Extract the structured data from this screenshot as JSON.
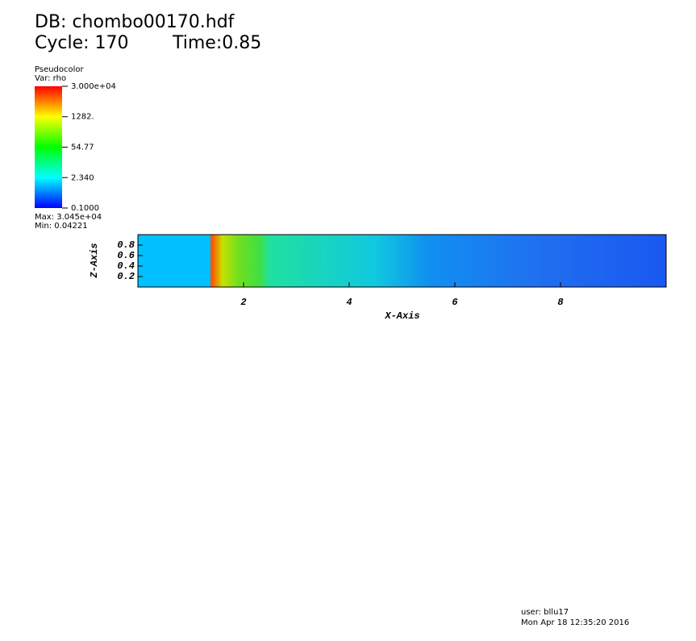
{
  "chart_data": {
    "type": "pseudocolor",
    "title": "DB: chombo00170.hdf",
    "cycle": "Cycle: 170",
    "time": "Time:0.85",
    "legend": {
      "plot": "Pseudocolor",
      "variable": "Var: rho",
      "clim": [
        0.1,
        30000
      ],
      "log_scale": true,
      "ticks": [
        {
          "value": 30000,
          "label": "3.000e+04"
        },
        {
          "value": 1282,
          "label": "1282."
        },
        54.77,
        {
          "value": 2.34,
          "label": "2.340"
        },
        {
          "value": 0.1,
          "label": "0.1000"
        }
      ],
      "max": "Max: 3.045e+04",
      "min": "Min: 0.04221"
    },
    "x_label": "X-Axis",
    "y_label": "Z-Axis",
    "xlim": [
      0,
      10
    ],
    "xticks": [
      2,
      4,
      6,
      8
    ],
    "ylim": [
      0,
      1
    ],
    "yticks": [
      0.2,
      0.4,
      0.6,
      0.8
    ],
    "user": "user: bllu17",
    "date": "Mon Apr 18 12:35:20 2016"
  }
}
